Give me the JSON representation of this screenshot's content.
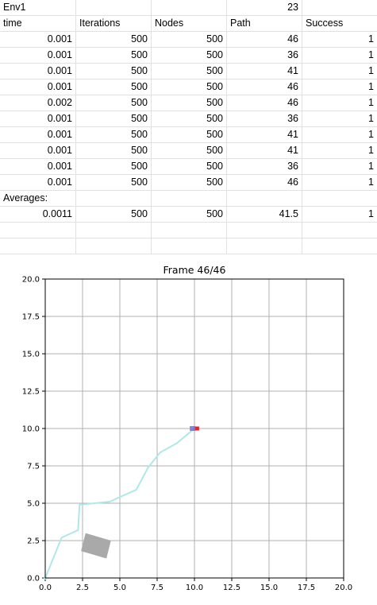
{
  "spreadsheet": {
    "title_cell": "Env1",
    "title_value": "23",
    "headers": [
      "time",
      "Iterations",
      "Nodes",
      "Path",
      "Success"
    ],
    "rows": [
      [
        "0.001",
        "500",
        "500",
        "46",
        "1"
      ],
      [
        "0.001",
        "500",
        "500",
        "36",
        "1"
      ],
      [
        "0.001",
        "500",
        "500",
        "41",
        "1"
      ],
      [
        "0.001",
        "500",
        "500",
        "46",
        "1"
      ],
      [
        "0.002",
        "500",
        "500",
        "46",
        "1"
      ],
      [
        "0.001",
        "500",
        "500",
        "36",
        "1"
      ],
      [
        "0.001",
        "500",
        "500",
        "41",
        "1"
      ],
      [
        "0.001",
        "500",
        "500",
        "41",
        "1"
      ],
      [
        "0.001",
        "500",
        "500",
        "36",
        "1"
      ],
      [
        "0.001",
        "500",
        "500",
        "46",
        "1"
      ]
    ],
    "averages_label": "Averages:",
    "averages": [
      "0.0011",
      "500",
      "500",
      "41.5",
      "1"
    ]
  },
  "chart_data": {
    "type": "line",
    "title": "Frame 46/46",
    "xlabel": "",
    "ylabel": "",
    "xlim": [
      0,
      20
    ],
    "ylim": [
      0,
      20
    ],
    "grid": true,
    "x_ticks": [
      "0.0",
      "2.5",
      "5.0",
      "7.5",
      "10.0",
      "12.5",
      "15.0",
      "17.5",
      "20.0"
    ],
    "y_ticks": [
      "0.0",
      "2.5",
      "5.0",
      "7.5",
      "10.0",
      "12.5",
      "15.0",
      "17.5",
      "20.0"
    ],
    "path": {
      "color": "#aee8e8",
      "x": [
        0.0,
        1.1,
        2.2,
        2.3,
        4.3,
        6.1,
        6.9,
        7.7,
        8.8,
        10.0
      ],
      "y": [
        0.0,
        2.7,
        3.2,
        4.9,
        5.1,
        5.9,
        7.4,
        8.4,
        9.0,
        10.0
      ]
    },
    "obstacle": {
      "color": "#a9a9a9",
      "corners_x": [
        2.7,
        4.4,
        4.1,
        2.4
      ],
      "corners_y": [
        3.0,
        2.5,
        1.3,
        1.8
      ]
    },
    "goal_marker": {
      "color": "#e8242b",
      "x": 10.1,
      "y": 10.0
    },
    "robot_marker": {
      "color": "#7a7ad0",
      "x": 9.9,
      "y": 10.0
    }
  }
}
